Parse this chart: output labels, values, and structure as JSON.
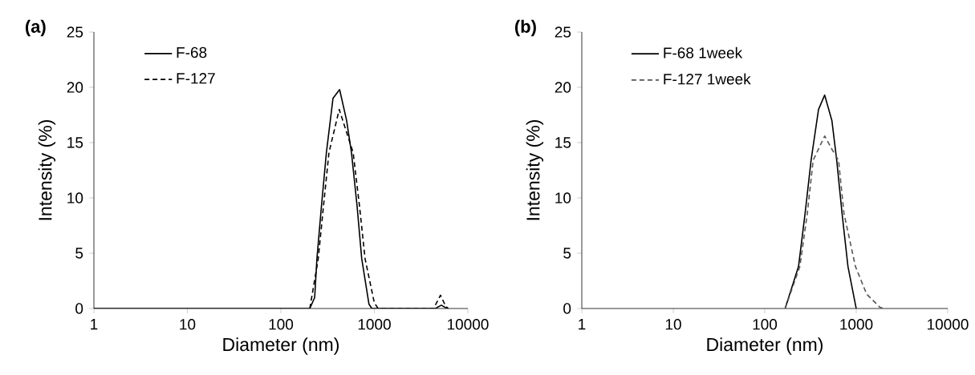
{
  "chart_data": [
    {
      "type": "line",
      "title": "(a)",
      "xlabel": "Diameter (nm)",
      "ylabel": "Intensity (%)",
      "log": "x",
      "legend": "top left",
      "grid": false,
      "xlim": [
        1,
        10000
      ],
      "xticks": [
        1,
        10,
        100,
        1000,
        10000
      ],
      "ylim": [
        0,
        25
      ],
      "yticks": [
        0,
        5,
        10,
        15,
        20,
        25
      ],
      "series": [
        {
          "name": "F-68",
          "color": "#000000",
          "line_style": "solid",
          "x": [
            1,
            204,
            230,
            243,
            272,
            307,
            361,
            425,
            505,
            569,
            653,
            733,
            875,
            940,
            4500,
            5200,
            6000
          ],
          "values": [
            0,
            0,
            1,
            4.5,
            9.3,
            14.1,
            19.0,
            19.8,
            17.0,
            14.1,
            9.3,
            4.5,
            0.4,
            0,
            0,
            0.3,
            0
          ]
        },
        {
          "name": "F-127",
          "color": "#000000",
          "line_style": "dashed",
          "x": [
            204,
            251,
            286,
            327,
            421,
            593,
            693,
            796,
            1000,
            1100,
            4300,
            5100,
            5800,
            6200
          ],
          "values": [
            0,
            4.5,
            9.3,
            14.1,
            18.0,
            14.1,
            9.3,
            4.5,
            0.5,
            0,
            0,
            1.2,
            0.2,
            0
          ]
        }
      ]
    },
    {
      "type": "line",
      "title": "(b)",
      "xlabel": "Diameter (nm)",
      "ylabel": "Intensity (%)",
      "log": "x",
      "legend": "top left",
      "grid": false,
      "xlim": [
        1,
        10000
      ],
      "xticks": [
        1,
        10,
        100,
        1000,
        10000
      ],
      "ylim": [
        0,
        25
      ],
      "yticks": [
        0,
        5,
        10,
        15,
        20,
        25
      ],
      "series": [
        {
          "name": "F-68 1week",
          "color": "#000000",
          "line_style": "solid",
          "x": [
            167,
            234,
            276,
            321,
            387,
            452,
            542,
            612,
            700,
            812,
            994,
            1000
          ],
          "values": [
            0,
            3.8,
            8.6,
            13.4,
            18.0,
            19.3,
            17.0,
            13.4,
            8.6,
            3.8,
            0.1,
            0
          ]
        },
        {
          "name": "F-127 1week",
          "color": "#555555",
          "line_style": "dashed",
          "x": [
            167,
            242,
            292,
            338,
            452,
            542,
            641,
            734,
            980,
            1300,
            1820,
            2000
          ],
          "values": [
            0,
            3.8,
            8.6,
            13.4,
            15.6,
            14.4,
            13.4,
            8.6,
            3.8,
            1.3,
            0.1,
            0
          ]
        }
      ]
    }
  ]
}
